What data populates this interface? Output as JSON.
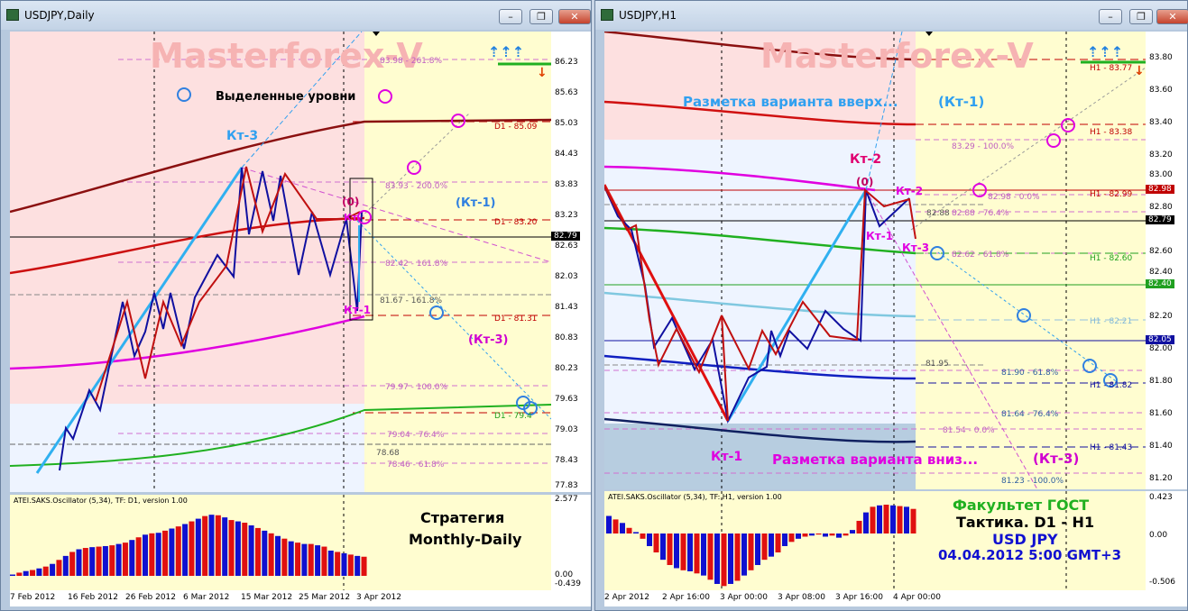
{
  "left": {
    "title": "USDJPY,Daily",
    "watermark": "Masterforex-V",
    "highlighted_levels": "Выделенные уровни",
    "labels": {
      "kt3_top": "Кт-3",
      "zero": "(0)",
      "kt1_paren": "(Кт-1)",
      "kt3_paren": "(Кт-3)",
      "kt1": "Кт-1",
      "kt_small": "Кт-"
    },
    "fib_levels": [
      "83.98 - 261.8%",
      "83.93 - 200.0%",
      "82.42 - 161.8%",
      "81.67 - 161.8%",
      "79.97 - 100.0%",
      "79.04 - 76.4%",
      "78.46 - 61.8%",
      "78.68"
    ],
    "d1_levels": [
      "D1 - 85.09",
      "D1 - 83.20",
      "D1 - 81.31",
      "D1 - 79.4"
    ],
    "price_ticks": [
      "86.23",
      "85.63",
      "85.03",
      "84.43",
      "83.83",
      "83.23",
      "82.63",
      "82.03",
      "81.43",
      "80.83",
      "80.23",
      "79.63",
      "79.03",
      "78.43",
      "77.83"
    ],
    "current_price": "82.79",
    "osc_label": "ATEI.SAKS.Oscillator (5,34), TF: D1, version 1.00",
    "osc_ticks": [
      "2.577",
      "0.00",
      "-0.439"
    ],
    "strategy": [
      "Стратегия",
      "Monthly-Daily"
    ],
    "date_ticks": [
      "7 Feb 2012",
      "16 Feb 2012",
      "26 Feb 2012",
      "6 Mar 2012",
      "15 Mar 2012",
      "25 Mar 2012",
      "3 Apr 2012"
    ],
    "osc_values": [
      0.05,
      0.12,
      0.18,
      0.22,
      0.28,
      0.35,
      0.45,
      0.6,
      0.75,
      0.9,
      1.0,
      1.05,
      1.08,
      1.1,
      1.12,
      1.15,
      1.2,
      1.25,
      1.35,
      1.45,
      1.55,
      1.6,
      1.62,
      1.7,
      1.78,
      1.86,
      1.95,
      2.05,
      2.15,
      2.25,
      2.3,
      2.28,
      2.2,
      2.1,
      2.05,
      2.0,
      1.9,
      1.8,
      1.7,
      1.6,
      1.5,
      1.4,
      1.3,
      1.25,
      1.2,
      1.2,
      1.15,
      1.1,
      0.95,
      0.9,
      0.85,
      0.8,
      0.75,
      0.72
    ]
  },
  "right": {
    "title": "USDJPY,H1",
    "watermark": "Masterforex-V",
    "markup_up": "Разметка варианта вверх...",
    "markup_down": "Разметка варианта вниз...",
    "labels": {
      "kt1_paren": "(Кт-1)",
      "kt3_paren": "(Кт-3)",
      "kt2_top": "Кт-2",
      "zero": "(0)",
      "kt2": "Кт-2",
      "kt1_mid": "Кт-1",
      "kt3_mid": "Кт-3",
      "kt1_bottom": "Кт-1"
    },
    "fib_levels": [
      "83.29 - 100.0%",
      "82.98 - 0.0%",
      "82.88 - 76.4%",
      "82.88",
      "82.62 - 61.8%",
      "81.95",
      "81.90 - 61.8%",
      "81.64 - 76.4%",
      "81.54 - 0.0%",
      "81.23 - 100.0%"
    ],
    "h1_levels": [
      "H1 - 83.77",
      "H1 - 83.38",
      "H1 - 82.99",
      "H1 - 82.60",
      "H1 - 82.21",
      "H1 - 81.82",
      "H1 - 81.43"
    ],
    "price_ticks": [
      "83.80",
      "83.60",
      "83.40",
      "83.20",
      "83.00",
      "82.80",
      "82.60",
      "82.40",
      "82.20",
      "82.00",
      "81.80",
      "81.60",
      "81.40",
      "81.20"
    ],
    "price_tags": [
      "82.98",
      "82.79",
      "82.40",
      "82.05"
    ],
    "osc_label": "ATEI.SAKS.Oscillator (5,34), TF: H1, version 1.00",
    "osc_ticks": [
      "0.423",
      "0.00",
      "-0.506"
    ],
    "faculty": [
      "Факультет ГОСТ",
      "Тактика. D1 - H1",
      "USD JPY",
      "04.04.2012 5:00 GMT+3"
    ],
    "date_ticks": [
      "2 Apr 2012",
      "2 Apr 16:00",
      "3 Apr 00:00",
      "3 Apr 08:00",
      "3 Apr 16:00",
      "4 Apr 00:00"
    ],
    "osc_values": [
      0.25,
      0.2,
      0.15,
      0.08,
      0.02,
      -0.05,
      -0.12,
      -0.18,
      -0.25,
      -0.3,
      -0.33,
      -0.35,
      -0.36,
      -0.38,
      -0.4,
      -0.44,
      -0.48,
      -0.5,
      -0.48,
      -0.45,
      -0.4,
      -0.35,
      -0.3,
      -0.25,
      -0.22,
      -0.18,
      -0.12,
      -0.08,
      -0.05,
      -0.03,
      -0.02,
      -0.01,
      -0.03,
      -0.02,
      -0.04,
      -0.02,
      0.05,
      0.18,
      0.3,
      0.38,
      0.4,
      0.41,
      0.4,
      0.39,
      0.38,
      0.35
    ]
  },
  "colors": {
    "bull": "#e01010",
    "bear": "#1010d0",
    "zone_red": "#fde0e0",
    "zone_yellow": "#fffdd0",
    "zone_blue": "#eef4ff"
  }
}
